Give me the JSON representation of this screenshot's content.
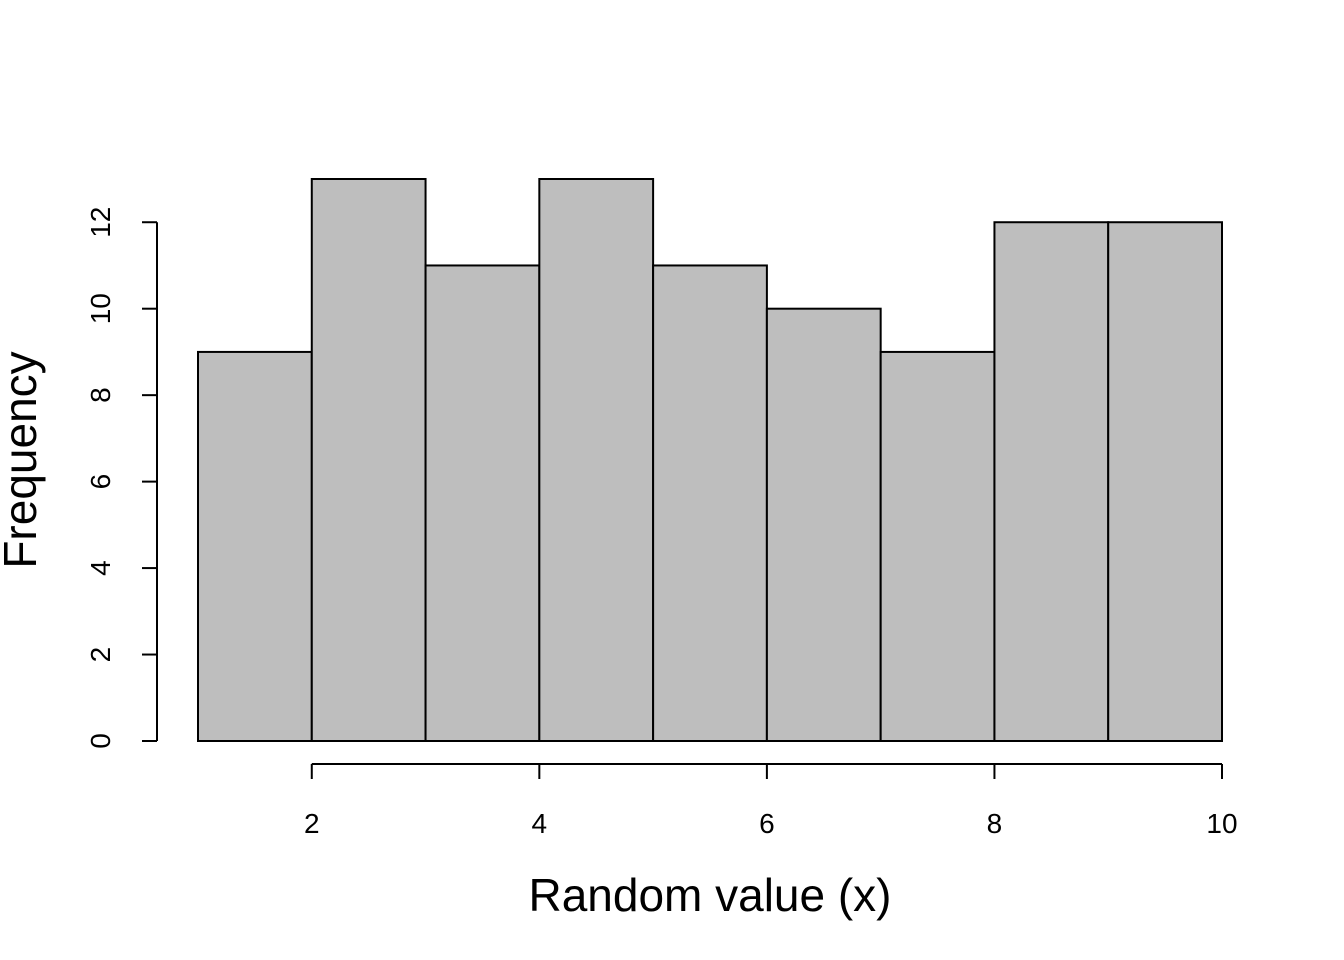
{
  "chart_data": {
    "type": "bar",
    "subtype": "histogram",
    "title": "",
    "xlabel": "Random value (x)",
    "ylabel": "Frequency",
    "bins": [
      {
        "start": 1,
        "end": 2,
        "count": 9
      },
      {
        "start": 2,
        "end": 3,
        "count": 13
      },
      {
        "start": 3,
        "end": 4,
        "count": 11
      },
      {
        "start": 4,
        "end": 5,
        "count": 13
      },
      {
        "start": 5,
        "end": 6,
        "count": 11
      },
      {
        "start": 6,
        "end": 7,
        "count": 10
      },
      {
        "start": 7,
        "end": 8,
        "count": 9
      },
      {
        "start": 8,
        "end": 9,
        "count": 12
      },
      {
        "start": 9,
        "end": 10,
        "count": 12
      }
    ],
    "xlim": [
      1,
      10
    ],
    "x_axis_range": [
      2,
      10
    ],
    "ylim": [
      0,
      13
    ],
    "y_axis_range": [
      0,
      12
    ],
    "xticks": [
      "2",
      "4",
      "6",
      "8",
      "10"
    ],
    "yticks": [
      "0",
      "2",
      "4",
      "6",
      "8",
      "10",
      "12"
    ],
    "grid": false,
    "legend": "none",
    "bar_color": "#bebebe",
    "edge_color": "#000000"
  }
}
